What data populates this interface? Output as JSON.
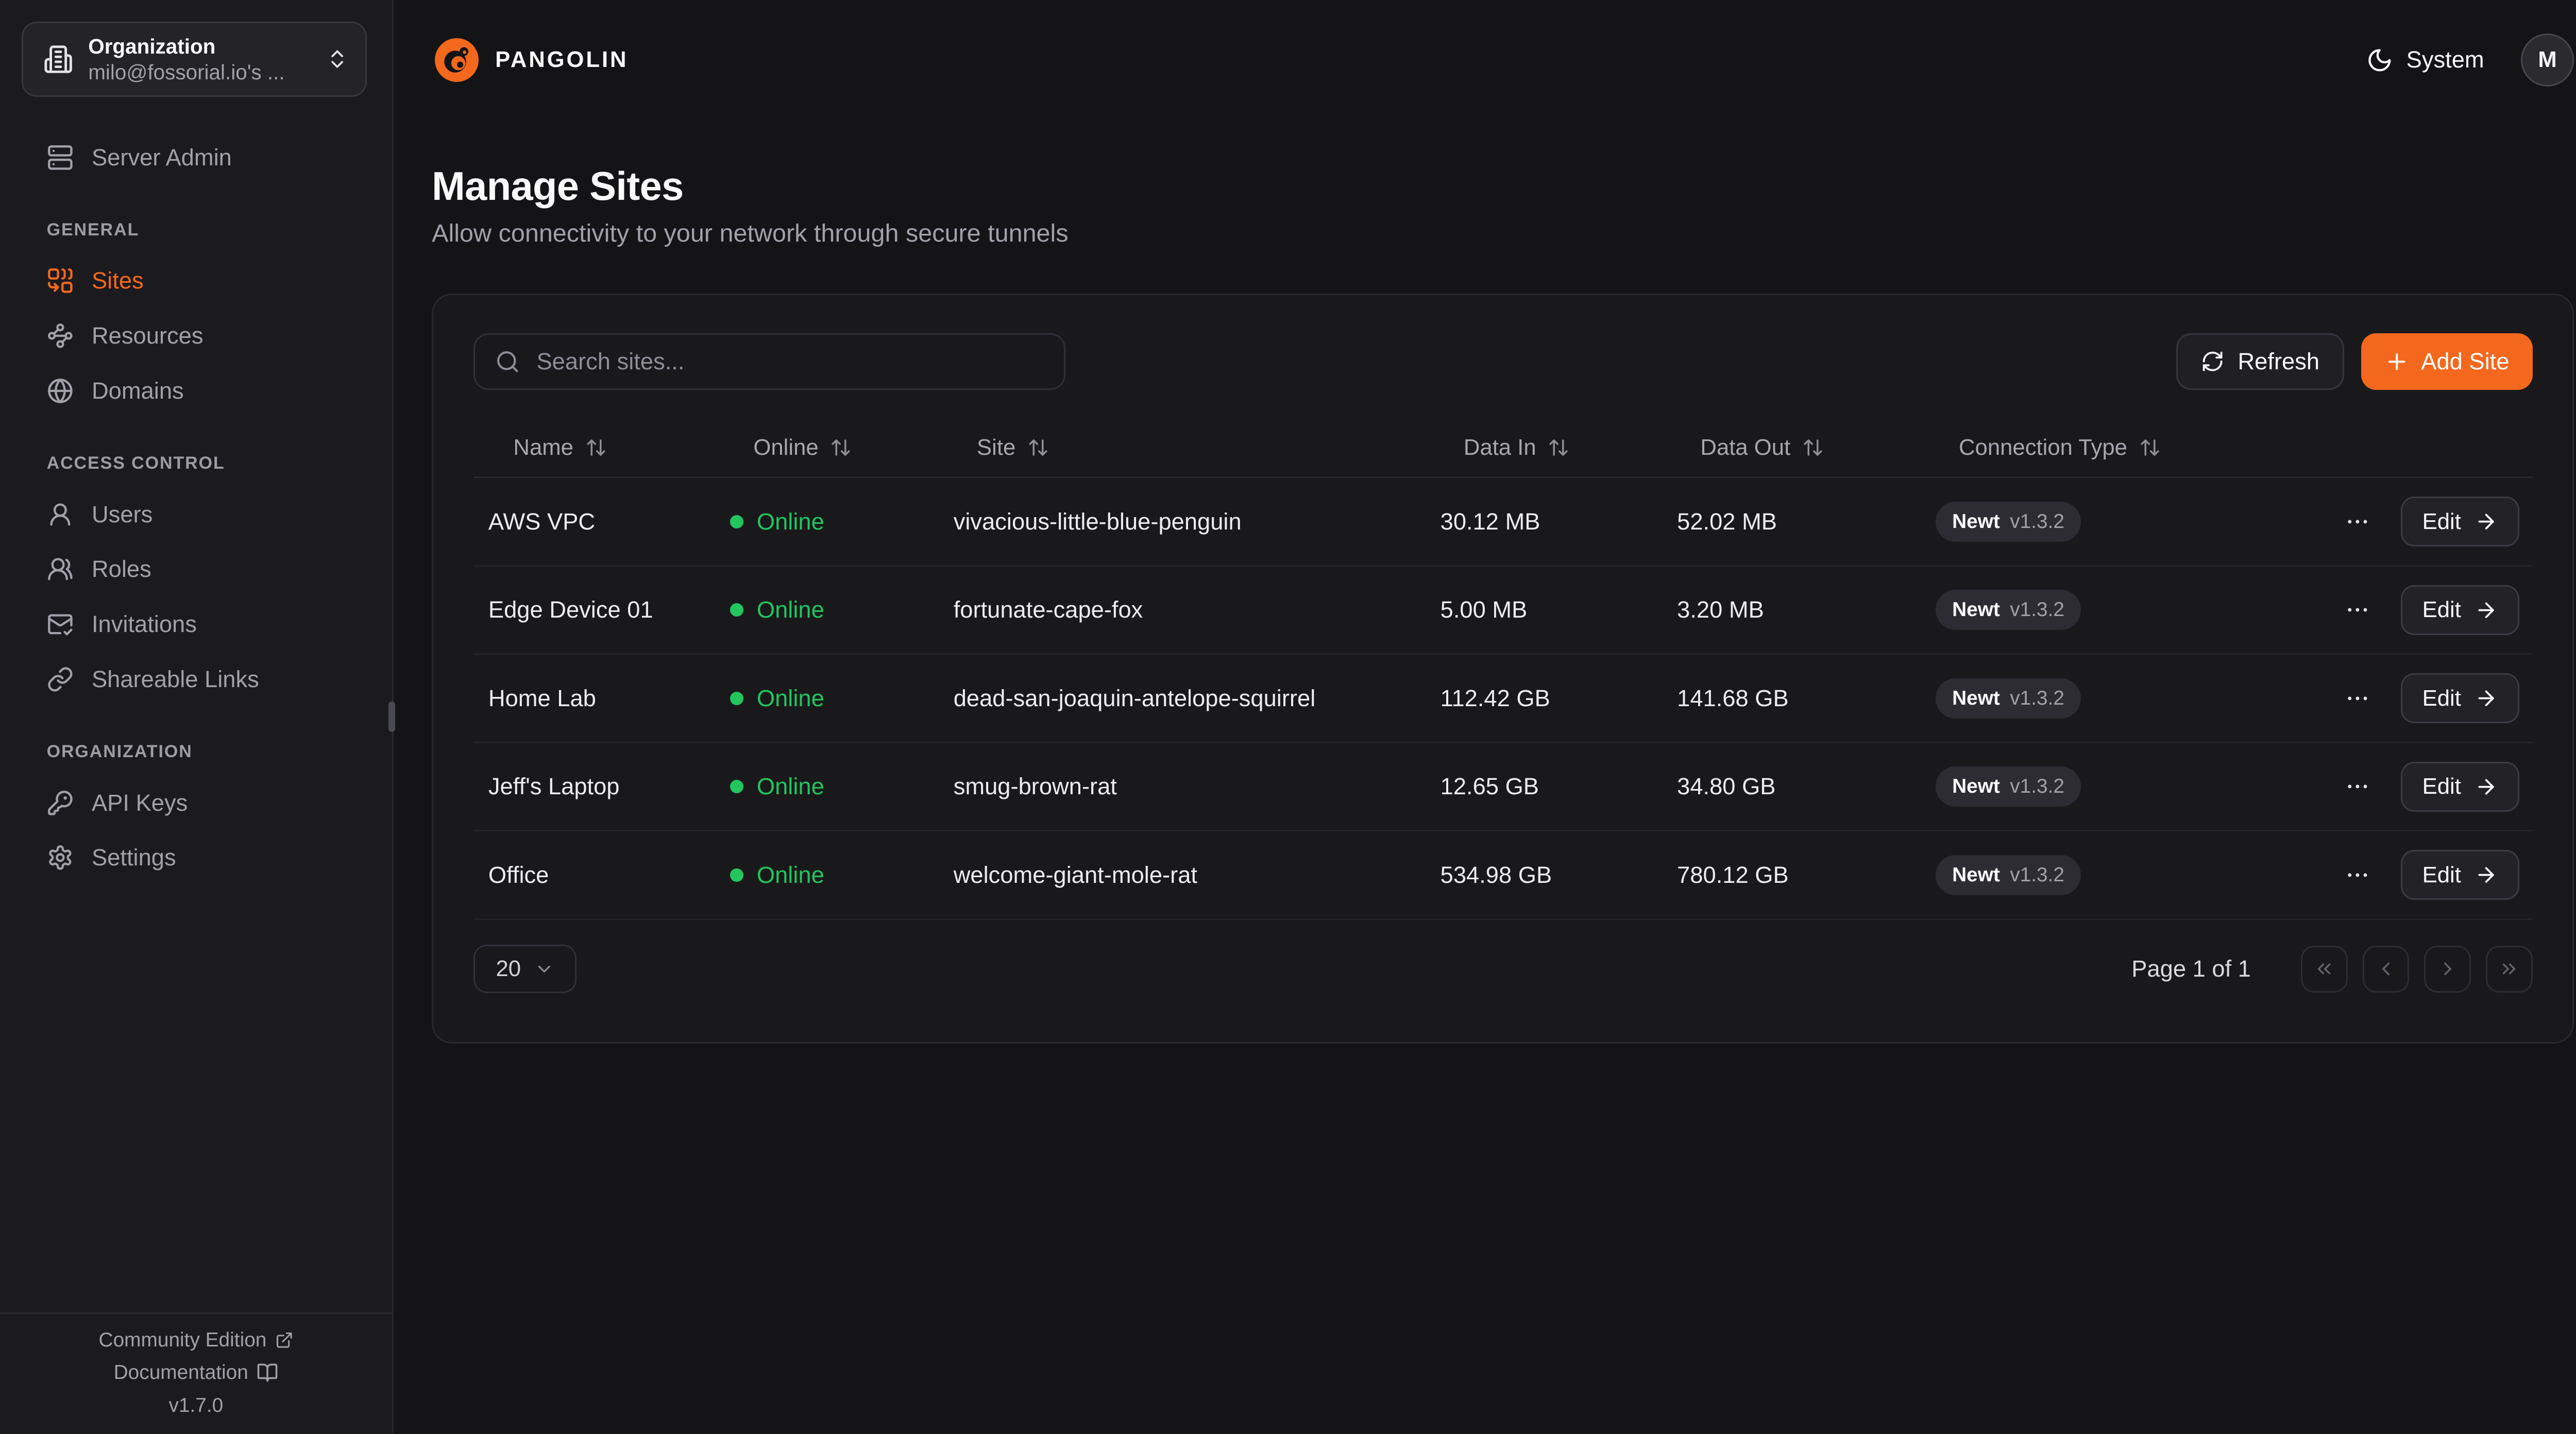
{
  "colors": {
    "accent": "#F3681D",
    "online_green": "#22C55E"
  },
  "org_switcher": {
    "title": "Organization",
    "subtitle": "milo@fossorial.io's ...",
    "icon": "building-icon",
    "chevron_icon": "chevrons-up-down-icon"
  },
  "sidebar": {
    "sections": [
      {
        "label": "",
        "items": [
          {
            "label": "Server Admin",
            "icon": "server-icon",
            "active": false
          }
        ]
      },
      {
        "label": "GENERAL",
        "items": [
          {
            "label": "Sites",
            "icon": "combine-icon",
            "active": true
          },
          {
            "label": "Resources",
            "icon": "waypoints-icon",
            "active": false
          },
          {
            "label": "Domains",
            "icon": "globe-icon",
            "active": false
          }
        ]
      },
      {
        "label": "ACCESS CONTROL",
        "items": [
          {
            "label": "Users",
            "icon": "user-icon",
            "active": false
          },
          {
            "label": "Roles",
            "icon": "users-icon",
            "active": false
          },
          {
            "label": "Invitations",
            "icon": "mail-check-icon",
            "active": false
          },
          {
            "label": "Shareable Links",
            "icon": "link-icon",
            "active": false
          }
        ]
      },
      {
        "label": "ORGANIZATION",
        "items": [
          {
            "label": "API Keys",
            "icon": "key-icon",
            "active": false
          },
          {
            "label": "Settings",
            "icon": "gear-icon",
            "active": false
          }
        ]
      }
    ],
    "footer": {
      "community_edition": "Community Edition",
      "documentation": "Documentation",
      "version": "v1.7.0"
    }
  },
  "topbar": {
    "brand": "PANGOLIN",
    "theme_label": "System",
    "avatar_initial": "M"
  },
  "page": {
    "title": "Manage Sites",
    "subtitle": "Allow connectivity to your network through secure tunnels"
  },
  "toolbar": {
    "search_placeholder": "Search sites...",
    "refresh_label": "Refresh",
    "add_site_label": "Add Site"
  },
  "table": {
    "columns": [
      "Name",
      "Online",
      "Site",
      "Data In",
      "Data Out",
      "Connection Type"
    ],
    "rows": [
      {
        "name": "AWS VPC",
        "status": "Online",
        "site": "vivacious-little-blue-penguin",
        "data_in": "30.12 MB",
        "data_out": "52.02 MB",
        "connection": "Newt",
        "version": "v1.3.2",
        "edit_label": "Edit"
      },
      {
        "name": "Edge Device 01",
        "status": "Online",
        "site": "fortunate-cape-fox",
        "data_in": "5.00 MB",
        "data_out": "3.20 MB",
        "connection": "Newt",
        "version": "v1.3.2",
        "edit_label": "Edit"
      },
      {
        "name": "Home Lab",
        "status": "Online",
        "site": "dead-san-joaquin-antelope-squirrel",
        "data_in": "112.42 GB",
        "data_out": "141.68 GB",
        "connection": "Newt",
        "version": "v1.3.2",
        "edit_label": "Edit"
      },
      {
        "name": "Jeff's Laptop",
        "status": "Online",
        "site": "smug-brown-rat",
        "data_in": "12.65 GB",
        "data_out": "34.80 GB",
        "connection": "Newt",
        "version": "v1.3.2",
        "edit_label": "Edit"
      },
      {
        "name": "Office",
        "status": "Online",
        "site": "welcome-giant-mole-rat",
        "data_in": "534.98 GB",
        "data_out": "780.12 GB",
        "connection": "Newt",
        "version": "v1.3.2",
        "edit_label": "Edit"
      }
    ]
  },
  "pagination": {
    "page_size": "20",
    "page_info": "Page 1 of 1"
  }
}
